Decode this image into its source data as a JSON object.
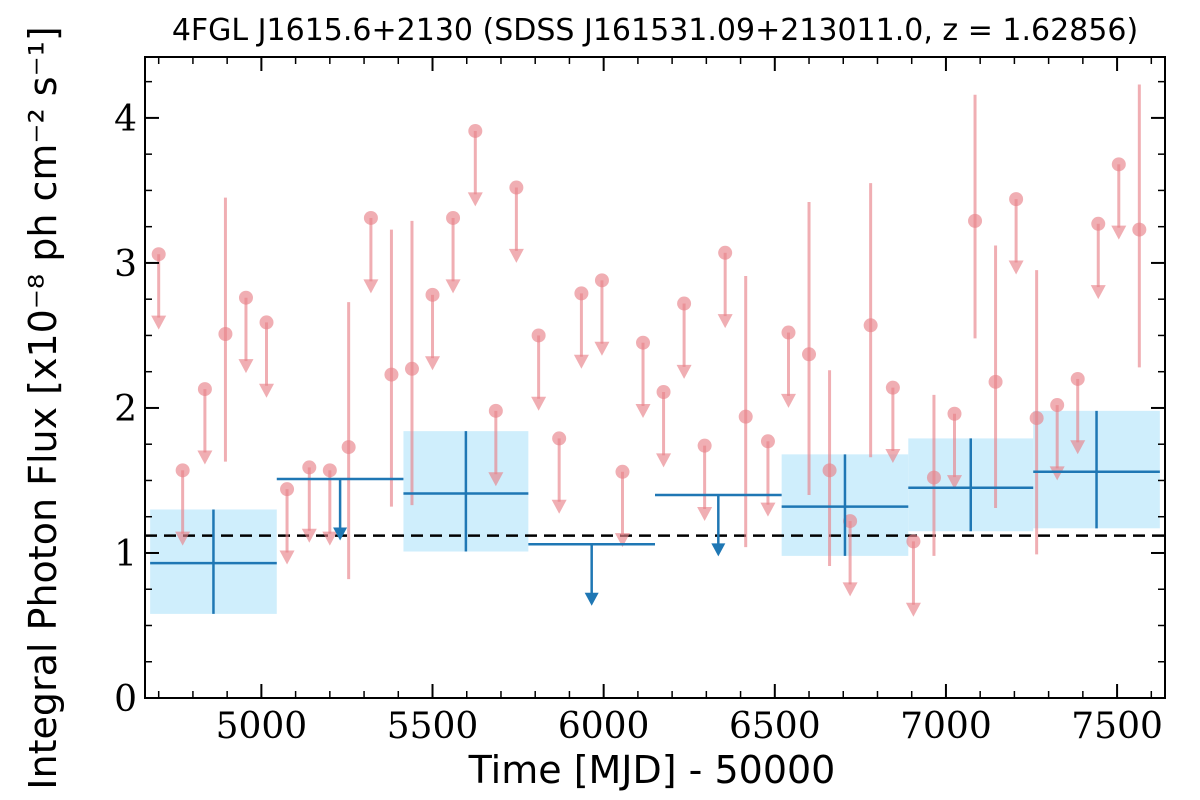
{
  "chart_data": {
    "type": "scatter",
    "title": "4FGL J1615.6+2130 (SDSS J161531.09+213011.0, z = 1.62856)",
    "xlabel": "Time [MJD] - 50000",
    "ylabel": "Integral Photon Flux [x10⁻⁸ ph cm⁻² s⁻¹]",
    "xlim": [
      4660,
      7640
    ],
    "ylim": [
      0,
      4.42
    ],
    "x_ticks": [
      5000,
      5500,
      6000,
      6500,
      7000,
      7500
    ],
    "y_ticks": [
      0,
      1,
      2,
      3,
      4
    ],
    "grid": false,
    "reference_line": {
      "y": 1.12,
      "style": "dashed",
      "color": "#000000"
    },
    "colors": {
      "short_bin": "#e8838a",
      "long_bin": "#1f77b4",
      "long_bin_band": "#cfeefc"
    },
    "series": [
      {
        "points": [
          {
            "x": 4700,
            "y": 3.06,
            "ul": true
          },
          {
            "x": 4770,
            "y": 1.57,
            "ul": true
          },
          {
            "x": 4835,
            "y": 2.13,
            "ul": true
          },
          {
            "x": 4895,
            "y": 2.51,
            "lo": 1.63,
            "hi": 3.45
          },
          {
            "x": 4955,
            "y": 2.76,
            "ul": true
          },
          {
            "x": 5015,
            "y": 2.59,
            "ul": true
          },
          {
            "x": 5075,
            "y": 1.44,
            "ul": true
          },
          {
            "x": 5140,
            "y": 1.59,
            "ul": true
          },
          {
            "x": 5200,
            "y": 1.57,
            "ul": true
          },
          {
            "x": 5255,
            "y": 1.73,
            "lo": 0.82,
            "hi": 2.73
          },
          {
            "x": 5320,
            "y": 3.31,
            "ul": true
          },
          {
            "x": 5380,
            "y": 2.23,
            "lo": 1.32,
            "hi": 3.23
          },
          {
            "x": 5440,
            "y": 2.27,
            "lo": 1.33,
            "hi": 3.29
          },
          {
            "x": 5500,
            "y": 2.78,
            "ul": true
          },
          {
            "x": 5560,
            "y": 3.31,
            "ul": true
          },
          {
            "x": 5625,
            "y": 3.91,
            "ul": true
          },
          {
            "x": 5685,
            "y": 1.98,
            "ul": true
          },
          {
            "x": 5745,
            "y": 3.52,
            "ul": true
          },
          {
            "x": 5810,
            "y": 2.5,
            "ul": true
          },
          {
            "x": 5870,
            "y": 1.79,
            "ul": true
          },
          {
            "x": 5935,
            "y": 2.79,
            "ul": true
          },
          {
            "x": 5995,
            "y": 2.88,
            "ul": true
          },
          {
            "x": 6055,
            "y": 1.56,
            "ul": true
          },
          {
            "x": 6115,
            "y": 2.45,
            "ul": true
          },
          {
            "x": 6175,
            "y": 2.11,
            "ul": true
          },
          {
            "x": 6235,
            "y": 2.72,
            "ul": true
          },
          {
            "x": 6295,
            "y": 1.74,
            "ul": true
          },
          {
            "x": 6355,
            "y": 3.07,
            "ul": true
          },
          {
            "x": 6415,
            "y": 1.94,
            "lo": 1.04,
            "hi": 2.91
          },
          {
            "x": 6480,
            "y": 1.77,
            "ul": true
          },
          {
            "x": 6540,
            "y": 2.52,
            "ul": true
          },
          {
            "x": 6600,
            "y": 2.37,
            "lo": 1.4,
            "hi": 3.42
          },
          {
            "x": 6660,
            "y": 1.57,
            "lo": 0.91,
            "hi": 2.26
          },
          {
            "x": 6720,
            "y": 1.22,
            "ul": true
          },
          {
            "x": 6780,
            "y": 2.57,
            "lo": 1.66,
            "hi": 3.55
          },
          {
            "x": 6845,
            "y": 2.14,
            "ul": true
          },
          {
            "x": 6905,
            "y": 1.08,
            "ul": true
          },
          {
            "x": 6965,
            "y": 1.52,
            "lo": 0.98,
            "hi": 2.09
          },
          {
            "x": 7025,
            "y": 1.96,
            "ul": true
          },
          {
            "x": 7085,
            "y": 3.29,
            "lo": 2.48,
            "hi": 4.16
          },
          {
            "x": 7145,
            "y": 2.18,
            "lo": 1.31,
            "hi": 3.12
          },
          {
            "x": 7205,
            "y": 3.44,
            "ul": true
          },
          {
            "x": 7265,
            "y": 1.93,
            "lo": 0.99,
            "hi": 2.95
          },
          {
            "x": 7325,
            "y": 2.02,
            "ul": true
          },
          {
            "x": 7385,
            "y": 2.2,
            "ul": true
          },
          {
            "x": 7445,
            "y": 3.27,
            "ul": true
          },
          {
            "x": 7505,
            "y": 3.68,
            "ul": true
          },
          {
            "x": 7565,
            "y": 3.23,
            "lo": 2.28,
            "hi": 4.23
          }
        ]
      },
      {
        "bins": [
          {
            "x0": 4675,
            "x1": 5045,
            "y": 0.93,
            "lo": 0.58,
            "hi": 1.3
          },
          {
            "x0": 5045,
            "x1": 5415,
            "y": 1.51,
            "ul": true
          },
          {
            "x0": 5415,
            "x1": 5780,
            "y": 1.41,
            "lo": 1.01,
            "hi": 1.84
          },
          {
            "x0": 5780,
            "x1": 6150,
            "y": 1.06,
            "ul": true
          },
          {
            "x0": 6150,
            "x1": 6520,
            "y": 1.4,
            "ul": true
          },
          {
            "x0": 6520,
            "x1": 6890,
            "y": 1.32,
            "lo": 0.98,
            "hi": 1.68
          },
          {
            "x0": 6890,
            "x1": 7255,
            "y": 1.45,
            "lo": 1.15,
            "hi": 1.79
          },
          {
            "x0": 7255,
            "x1": 7625,
            "y": 1.56,
            "lo": 1.17,
            "hi": 1.98
          }
        ]
      }
    ]
  }
}
